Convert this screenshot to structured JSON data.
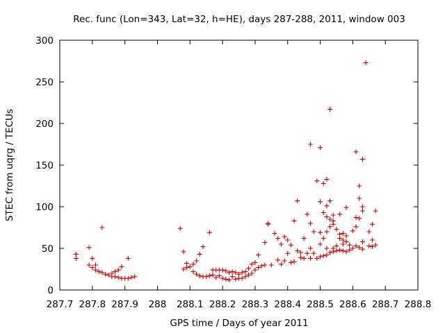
{
  "chart_data": {
    "type": "scatter",
    "title": "Rec. func (Lon=343, Lat=32, h=HE), days 287-288, 2011, window 003",
    "xlabel": "GPS time / Days of year 2011",
    "ylabel": "STEC from uqrg / TECUs",
    "xlim": [
      287.7,
      288.8
    ],
    "ylim": [
      0,
      300
    ],
    "xticks": [
      "287.7",
      "287.8",
      "287.9",
      "288",
      "288.1",
      "288.2",
      "288.3",
      "288.4",
      "288.5",
      "288.6",
      "288.7",
      "288.8"
    ],
    "yticks": [
      "0",
      "50",
      "100",
      "150",
      "200",
      "250",
      "300"
    ],
    "grid": false,
    "legend": "none",
    "marker": "plus",
    "color": "#cc0000",
    "points": [
      [
        287.75,
        43
      ],
      [
        287.75,
        38
      ],
      [
        287.79,
        51
      ],
      [
        287.79,
        30
      ],
      [
        287.8,
        38
      ],
      [
        287.8,
        27
      ],
      [
        287.81,
        30
      ],
      [
        287.81,
        24
      ],
      [
        287.82,
        22
      ],
      [
        287.83,
        75
      ],
      [
        287.83,
        21
      ],
      [
        287.84,
        19
      ],
      [
        287.85,
        18
      ],
      [
        287.86,
        20
      ],
      [
        287.86,
        16
      ],
      [
        287.87,
        22
      ],
      [
        287.87,
        16
      ],
      [
        287.88,
        24
      ],
      [
        287.88,
        15
      ],
      [
        287.89,
        28
      ],
      [
        287.89,
        14
      ],
      [
        287.9,
        14
      ],
      [
        287.91,
        38
      ],
      [
        287.91,
        14
      ],
      [
        287.92,
        15
      ],
      [
        287.93,
        16
      ],
      [
        288.07,
        74
      ],
      [
        288.08,
        46
      ],
      [
        288.08,
        25
      ],
      [
        288.09,
        32
      ],
      [
        288.09,
        27
      ],
      [
        288.1,
        28
      ],
      [
        288.11,
        31
      ],
      [
        288.11,
        22
      ],
      [
        288.12,
        35
      ],
      [
        288.12,
        19
      ],
      [
        288.13,
        43
      ],
      [
        288.13,
        17
      ],
      [
        288.14,
        52
      ],
      [
        288.14,
        16
      ],
      [
        288.15,
        16
      ],
      [
        288.16,
        69
      ],
      [
        288.16,
        17
      ],
      [
        288.17,
        18
      ],
      [
        288.17,
        24
      ],
      [
        288.18,
        24
      ],
      [
        288.18,
        15
      ],
      [
        288.19,
        17
      ],
      [
        288.19,
        24
      ],
      [
        288.2,
        14
      ],
      [
        288.2,
        24
      ],
      [
        288.21,
        23
      ],
      [
        288.21,
        13
      ],
      [
        288.22,
        21
      ],
      [
        288.22,
        12
      ],
      [
        288.23,
        22
      ],
      [
        288.23,
        16
      ],
      [
        288.24,
        21
      ],
      [
        288.24,
        13
      ],
      [
        288.25,
        14
      ],
      [
        288.25,
        19
      ],
      [
        288.26,
        21
      ],
      [
        288.26,
        14
      ],
      [
        288.27,
        22
      ],
      [
        288.27,
        16
      ],
      [
        288.28,
        26
      ],
      [
        288.28,
        18
      ],
      [
        288.29,
        31
      ],
      [
        288.29,
        20
      ],
      [
        288.3,
        33
      ],
      [
        288.3,
        24
      ],
      [
        288.31,
        42
      ],
      [
        288.31,
        27
      ],
      [
        288.32,
        29
      ],
      [
        288.33,
        57
      ],
      [
        288.33,
        30
      ],
      [
        288.34,
        80
      ],
      [
        288.34,
        79
      ],
      [
        288.35,
        30
      ],
      [
        288.36,
        68
      ],
      [
        288.37,
        62
      ],
      [
        288.37,
        36
      ],
      [
        288.38,
        55
      ],
      [
        288.38,
        31
      ],
      [
        288.39,
        64
      ],
      [
        288.39,
        35
      ],
      [
        288.4,
        60
      ],
      [
        288.4,
        44
      ],
      [
        288.41,
        54
      ],
      [
        288.41,
        33
      ],
      [
        288.42,
        83
      ],
      [
        288.42,
        34
      ],
      [
        288.43,
        107
      ],
      [
        288.43,
        47
      ],
      [
        288.44,
        45
      ],
      [
        288.44,
        39
      ],
      [
        288.45,
        62
      ],
      [
        288.45,
        38
      ],
      [
        288.46,
        91
      ],
      [
        288.46,
        44
      ],
      [
        288.47,
        175
      ],
      [
        288.47,
        80
      ],
      [
        288.47,
        50
      ],
      [
        288.47,
        38
      ],
      [
        288.48,
        70
      ],
      [
        288.48,
        44
      ],
      [
        288.49,
        131
      ],
      [
        288.49,
        38
      ],
      [
        288.5,
        171
      ],
      [
        288.5,
        106
      ],
      [
        288.5,
        69
      ],
      [
        288.5,
        55
      ],
      [
        288.5,
        40
      ],
      [
        288.51,
        128
      ],
      [
        288.51,
        93
      ],
      [
        288.51,
        62
      ],
      [
        288.51,
        41
      ],
      [
        288.52,
        133
      ],
      [
        288.52,
        101
      ],
      [
        288.52,
        88
      ],
      [
        288.52,
        70
      ],
      [
        288.52,
        50
      ],
      [
        288.52,
        42
      ],
      [
        288.53,
        217
      ],
      [
        288.53,
        107
      ],
      [
        288.53,
        85
      ],
      [
        288.53,
        76
      ],
      [
        288.53,
        45
      ],
      [
        288.54,
        90
      ],
      [
        288.54,
        83
      ],
      [
        288.54,
        79
      ],
      [
        288.54,
        50
      ],
      [
        288.54,
        46
      ],
      [
        288.55,
        73
      ],
      [
        288.55,
        53
      ],
      [
        288.55,
        47
      ],
      [
        288.56,
        91
      ],
      [
        288.56,
        67
      ],
      [
        288.56,
        62
      ],
      [
        288.56,
        48
      ],
      [
        288.57,
        68
      ],
      [
        288.57,
        60
      ],
      [
        288.57,
        55
      ],
      [
        288.57,
        47
      ],
      [
        288.58,
        99
      ],
      [
        288.58,
        65
      ],
      [
        288.58,
        58
      ],
      [
        288.58,
        46
      ],
      [
        288.59,
        54
      ],
      [
        288.59,
        48
      ],
      [
        288.6,
        71
      ],
      [
        288.6,
        50
      ],
      [
        288.61,
        166
      ],
      [
        288.61,
        87
      ],
      [
        288.61,
        76
      ],
      [
        288.61,
        53
      ],
      [
        288.62,
        125
      ],
      [
        288.62,
        110
      ],
      [
        288.62,
        86
      ],
      [
        288.62,
        51
      ],
      [
        288.63,
        157
      ],
      [
        288.63,
        100
      ],
      [
        288.63,
        95
      ],
      [
        288.63,
        58
      ],
      [
        288.63,
        49
      ],
      [
        288.64,
        273
      ],
      [
        288.65,
        70
      ],
      [
        288.65,
        53
      ],
      [
        288.66,
        79
      ],
      [
        288.66,
        60
      ],
      [
        288.66,
        52
      ],
      [
        288.67,
        95
      ],
      [
        288.67,
        54
      ]
    ]
  }
}
